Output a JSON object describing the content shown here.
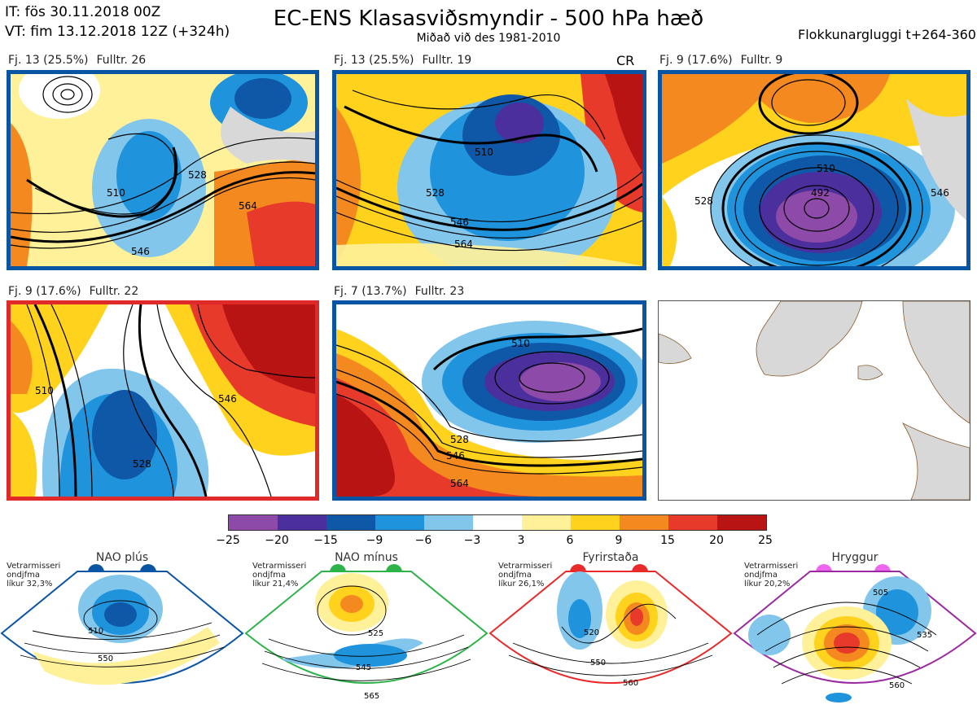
{
  "header": {
    "init_time": "IT: fös 30.11.2018 00Z",
    "valid_time": "VT: fim 13.12.2018 12Z  (+324h)",
    "title": "EC-ENS Klasasviðsmyndir - 500 hPa hæð",
    "subtitle": "Miðað við des 1981-2010",
    "window": "Flokkunargluggi t+264-360"
  },
  "panels": [
    {
      "count": "Fj. 13 (25.5%)",
      "rep": "Fulltr. 26",
      "border": "#0a55a3",
      "tag": "",
      "contours": [
        "510",
        "528",
        "546",
        "564"
      ]
    },
    {
      "count": "Fj. 13 (25.5%)",
      "rep": "Fulltr. 19",
      "border": "#0a55a3",
      "tag": "CR",
      "contours": [
        "510",
        "528",
        "546",
        "564"
      ]
    },
    {
      "count": "Fj. 9 (17.6%)",
      "rep": "Fulltr. 9",
      "border": "#0a55a3",
      "tag": "",
      "contours": [
        "492",
        "510",
        "528",
        "546"
      ]
    },
    {
      "count": "Fj. 9 (17.6%)",
      "rep": "Fulltr. 22",
      "border": "#e02a2a",
      "tag": "",
      "contours": [
        "510",
        "528",
        "546"
      ]
    },
    {
      "count": "Fj. 7 (13.7%)",
      "rep": "Fulltr. 23",
      "border": "#0a55a3",
      "tag": "",
      "contours": [
        "510",
        "528",
        "546",
        "564"
      ]
    }
  ],
  "colorbar": {
    "colors": [
      "#8e4aa8",
      "#4b2f9c",
      "#0f58a8",
      "#1f93dc",
      "#82c6ec",
      "#ffffff",
      "#fff19a",
      "#ffd21e",
      "#f4891f",
      "#e83a2b",
      "#b81414"
    ],
    "ticks": [
      "−25",
      "−20",
      "−15",
      "−9",
      "−6",
      "−3",
      "3",
      "6",
      "9",
      "15",
      "20",
      "25"
    ]
  },
  "regimes": [
    {
      "name": "NAO plús",
      "color": "#0a55a3",
      "note_lines": [
        "Vetrarmisseri",
        "ondjfma",
        "líkur 32,3%"
      ],
      "contours": [
        "510",
        "550"
      ]
    },
    {
      "name": "NAO mínus",
      "color": "#2db34a",
      "note_lines": [
        "Vetrarmisseri",
        "ondjfma",
        "líkur 21,4%"
      ],
      "contours": [
        "525",
        "545",
        "565"
      ]
    },
    {
      "name": "Fyrirstaða",
      "color": "#e82a2a",
      "note_lines": [
        "Vetrarmisseri",
        "ondjfma",
        "líkur 26,1%"
      ],
      "contours": [
        "520",
        "550",
        "560"
      ]
    },
    {
      "name": "Hryggur",
      "color": "#ee66ee",
      "note_lines": [
        "Vetrarmisseri",
        "ondjfma",
        "líkur 20,2%"
      ],
      "contours": [
        "505",
        "535",
        "560"
      ]
    }
  ]
}
